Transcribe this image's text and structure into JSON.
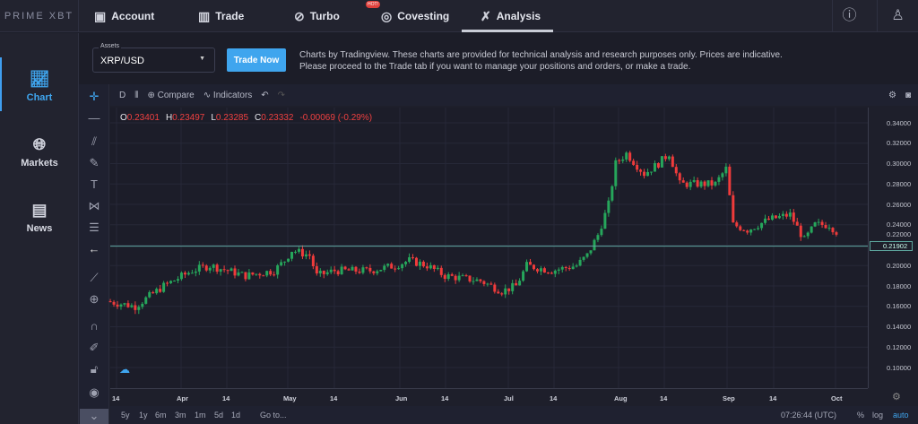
{
  "brand": "PRIME XBT",
  "nav": [
    {
      "label": "Account",
      "icon": "wallet-icon"
    },
    {
      "label": "Trade",
      "icon": "bar-chart-icon"
    },
    {
      "label": "Turbo",
      "icon": "turbo-icon"
    },
    {
      "label": "Covesting",
      "icon": "covesting-icon",
      "badge": "HOT!"
    },
    {
      "label": "Analysis",
      "icon": "analysis-icon",
      "active": true
    }
  ],
  "sidebar": [
    {
      "label": "Chart",
      "active": true
    },
    {
      "label": "Markets"
    },
    {
      "label": "News"
    }
  ],
  "assets": {
    "label": "Assets",
    "value": "XRP/USD"
  },
  "trade_now": "Trade Now",
  "disclaimer": "Charts by Tradingview. These charts are provided for technical analysis and research purposes only. Prices are indicative. Please proceed to the Trade tab if you want to manage your positions and orders, or make a trade.",
  "toolbar": {
    "interval": "D",
    "compare": "Compare",
    "indicators": "Indicators"
  },
  "ohlc": {
    "o": "0.23401",
    "h": "0.23497",
    "l": "0.23285",
    "c": "0.23332",
    "change": "-0.00069 (-0.29%)"
  },
  "ranges": [
    "5y",
    "1y",
    "6m",
    "3m",
    "1m",
    "5d",
    "1d"
  ],
  "goto": "Go to...",
  "clock": "07:26:44 (UTC)",
  "scale_opts": [
    "%",
    "log",
    "auto"
  ],
  "colors": {
    "up": "#26a65b",
    "down": "#ef3b3b",
    "accent": "#3fa5ee",
    "price_line": "#5ea8a0"
  },
  "chart_data": {
    "type": "candlestick",
    "symbol": "XRP/USD",
    "interval": "D",
    "ylim": [
      0.09,
      0.35
    ],
    "y_ticks": [
      "0.34000",
      "0.32000",
      "0.30000",
      "0.28000",
      "0.26000",
      "0.24000",
      "0.22000",
      "0.20000",
      "0.18000",
      "0.16000",
      "0.14000",
      "0.12000",
      "0.10000"
    ],
    "x_ticks": [
      "14",
      "Apr",
      "14",
      "May",
      "14",
      "Jun",
      "14",
      "Jul",
      "14",
      "Aug",
      "14",
      "Sep",
      "14",
      "Oct"
    ],
    "current_price": "0.21902",
    "close_keypoints": [
      [
        "03-12",
        0.165
      ],
      [
        "03-20",
        0.16
      ],
      [
        "03-28",
        0.18
      ],
      [
        "04-05",
        0.195
      ],
      [
        "04-10",
        0.2
      ],
      [
        "04-20",
        0.19
      ],
      [
        "04-28",
        0.195
      ],
      [
        "05-01",
        0.205
      ],
      [
        "05-03",
        0.215
      ],
      [
        "05-08",
        0.21
      ],
      [
        "05-10",
        0.19
      ],
      [
        "05-15",
        0.195
      ],
      [
        "05-25",
        0.195
      ],
      [
        "06-01",
        0.2
      ],
      [
        "06-05",
        0.205
      ],
      [
        "06-10",
        0.2
      ],
      [
        "06-15",
        0.19
      ],
      [
        "06-25",
        0.185
      ],
      [
        "07-01",
        0.175
      ],
      [
        "07-05",
        0.18
      ],
      [
        "07-08",
        0.2
      ],
      [
        "07-15",
        0.195
      ],
      [
        "07-22",
        0.2
      ],
      [
        "07-25",
        0.21
      ],
      [
        "07-28",
        0.23
      ],
      [
        "07-31",
        0.26
      ],
      [
        "08-02",
        0.3
      ],
      [
        "08-05",
        0.31
      ],
      [
        "08-10",
        0.29
      ],
      [
        "08-14",
        0.3
      ],
      [
        "08-17",
        0.31
      ],
      [
        "08-20",
        0.28
      ],
      [
        "08-25",
        0.28
      ],
      [
        "08-30",
        0.28
      ],
      [
        "09-02",
        0.295
      ],
      [
        "09-04",
        0.24
      ],
      [
        "09-08",
        0.235
      ],
      [
        "09-14",
        0.245
      ],
      [
        "09-20",
        0.25
      ],
      [
        "09-24",
        0.225
      ],
      [
        "09-27",
        0.24
      ],
      [
        "10-01",
        0.24
      ],
      [
        "10-03",
        0.2333
      ]
    ]
  }
}
